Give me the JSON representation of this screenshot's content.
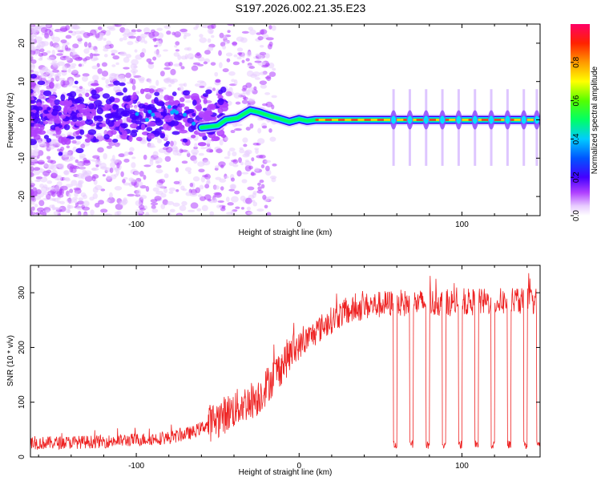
{
  "title": "S197.2026.002.21.35.E23",
  "chart_data": [
    {
      "type": "heatmap",
      "name": "spectrogram",
      "xlabel": "Height of straight line (km)",
      "ylabel": "Frequency (Hz)",
      "xlim": [
        -165,
        148
      ],
      "ylim": [
        -25,
        25
      ],
      "xticks": [
        -100,
        0,
        100
      ],
      "yticks": [
        -20,
        -10,
        0,
        10,
        20
      ],
      "colorbar": {
        "label": "Normalized spectral amplitude",
        "range": [
          0.0,
          1.0
        ],
        "ticks": [
          0.0,
          0.2,
          0.4,
          0.6,
          0.8
        ]
      },
      "ridge": [
        {
          "x": -60,
          "y": -2.0
        },
        {
          "x": -50,
          "y": -1.5
        },
        {
          "x": -45,
          "y": 0.0
        },
        {
          "x": -38,
          "y": 0.5
        },
        {
          "x": -30,
          "y": 2.5
        },
        {
          "x": -25,
          "y": 2.0
        },
        {
          "x": -18,
          "y": 1.0
        },
        {
          "x": -12,
          "y": 0.3
        },
        {
          "x": -6,
          "y": -0.5
        },
        {
          "x": 0,
          "y": 0.2
        },
        {
          "x": 5,
          "y": -0.3
        },
        {
          "x": 10,
          "y": 0.0
        },
        {
          "x": 148,
          "y": 0.0
        }
      ],
      "pulses_x": [
        58,
        68,
        78,
        88,
        98,
        108,
        118,
        128,
        138,
        146
      ]
    },
    {
      "type": "line",
      "name": "snr",
      "xlabel": "Height of straight line (km)",
      "ylabel": "SNR (10 * v/v)",
      "xlim": [
        -165,
        148
      ],
      "ylim": [
        0,
        350
      ],
      "xticks": [
        -100,
        0,
        100
      ],
      "yticks": [
        0,
        100,
        200,
        300
      ],
      "series": [
        {
          "name": "SNR",
          "color": "#ee2222",
          "envelope": [
            {
              "x": -165,
              "y": 25
            },
            {
              "x": -120,
              "y": 28
            },
            {
              "x": -80,
              "y": 35
            },
            {
              "x": -65,
              "y": 45
            },
            {
              "x": -50,
              "y": 70
            },
            {
              "x": -35,
              "y": 95
            },
            {
              "x": -25,
              "y": 110
            },
            {
              "x": -15,
              "y": 150
            },
            {
              "x": -5,
              "y": 190
            },
            {
              "x": 5,
              "y": 215
            },
            {
              "x": 15,
              "y": 240
            },
            {
              "x": 25,
              "y": 260
            },
            {
              "x": 40,
              "y": 275
            },
            {
              "x": 55,
              "y": 280
            },
            {
              "x": 148,
              "y": 285
            }
          ],
          "dropouts_x": [
            58,
            68,
            78,
            88,
            98,
            108,
            118,
            128,
            138,
            146
          ]
        }
      ]
    }
  ]
}
